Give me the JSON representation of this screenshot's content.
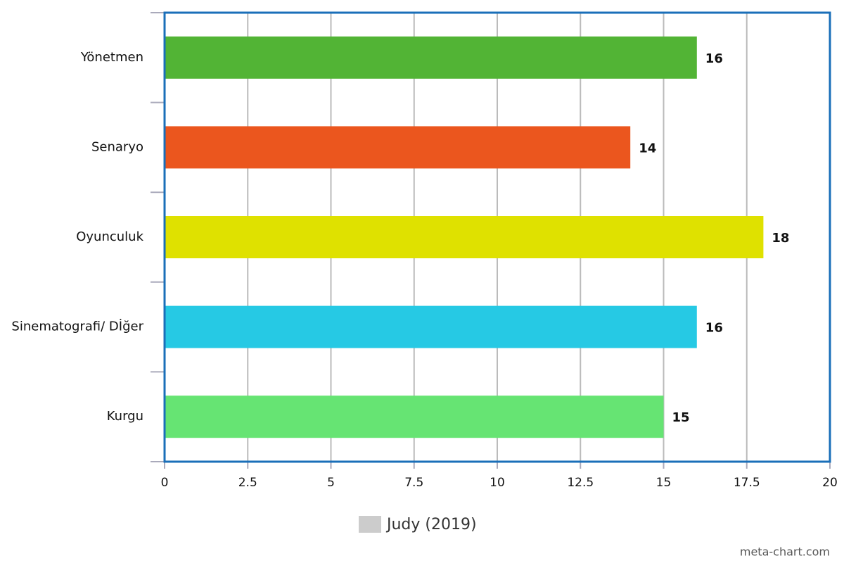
{
  "chart_data": {
    "type": "bar",
    "orientation": "horizontal",
    "categories": [
      "Yönetmen",
      "Senaryo",
      "Oyunculuk",
      "Sinematografi/ Dİğer",
      "Kurgu"
    ],
    "series": [
      {
        "name": "Judy (2019)",
        "color": "#cccccc",
        "values": [
          16,
          14,
          18,
          16,
          15
        ],
        "colors": [
          "#52b435",
          "#eb561e",
          "#dfe100",
          "#26c9e4",
          "#66e473"
        ]
      }
    ],
    "xlim": [
      0,
      20
    ],
    "xticks": [
      0,
      2.5,
      5,
      7.5,
      10,
      12.5,
      15,
      17.5,
      20
    ],
    "grid": true,
    "watermark": "meta-chart.com"
  }
}
